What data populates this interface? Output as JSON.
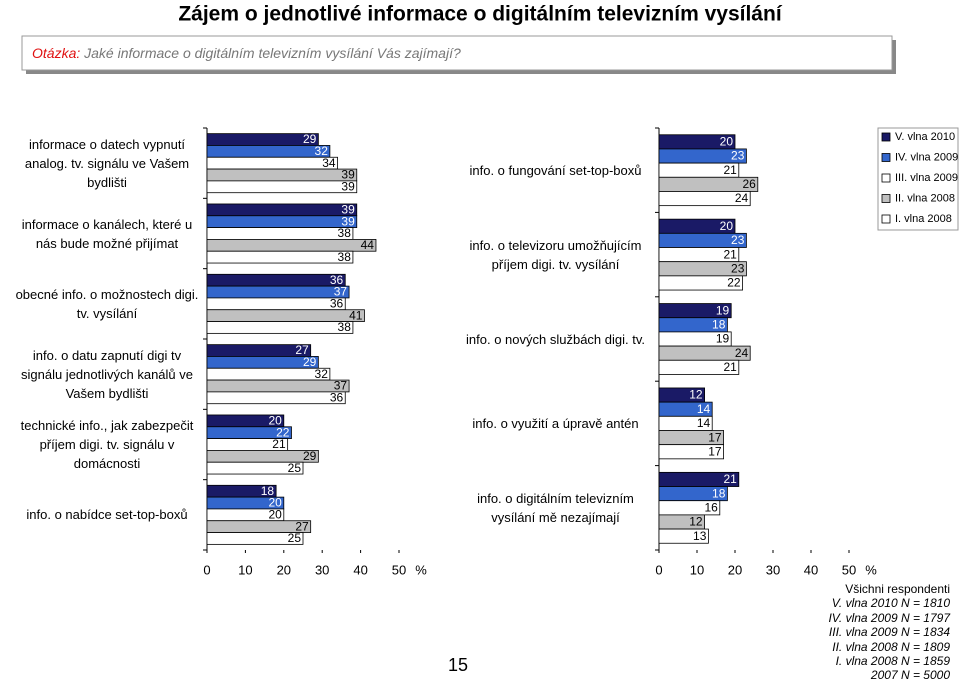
{
  "title": "Zájem o jednotlivé informace o digitálním televizním vysílání",
  "question": {
    "label": "Otázka:",
    "text": "Jaké informace o digitálním televizním vysílání Vás zajímají?"
  },
  "chart_data": [
    {
      "type": "bar",
      "orientation": "horizontal",
      "categories": [
        "informace o datech vypnutí analog. tv. signálu ve Vašem bydlišti",
        "informace o kanálech, které u nás bude možné přijímat",
        "obecné info. o možnostech digi. tv. vysílání",
        "info. o datu zapnutí digi tv signálu jednotlivých kanálů ve Vašem bydlišti",
        "technické info., jak zabezpečit příjem digi. tv. signálu v domácnosti",
        "info. o nabídce set-top-boxů"
      ],
      "series": [
        {
          "color": "#1a1a66",
          "values": [
            29,
            39,
            36,
            27,
            20,
            18
          ]
        },
        {
          "color": "#3366cc",
          "values": [
            32,
            39,
            37,
            29,
            22,
            20
          ]
        },
        {
          "color": "#ffffff",
          "values": [
            34,
            38,
            36,
            32,
            21,
            20
          ]
        },
        {
          "color": "#c0c0c0",
          "values": [
            39,
            44,
            41,
            37,
            29,
            27
          ]
        },
        {
          "color": "#ffffff",
          "values": [
            39,
            38,
            38,
            36,
            25,
            25
          ]
        }
      ],
      "xlim": [
        0,
        50
      ],
      "xticks": [
        0,
        10,
        20,
        30,
        40,
        50
      ],
      "x_unit": "%"
    },
    {
      "type": "bar",
      "orientation": "horizontal",
      "categories": [
        "info. o fungování set-top-boxů",
        "info. o televizoru umožňujícím příjem digi. tv. vysílání",
        "info. o nových službách digi. tv.",
        "info. o využití a úpravě antén",
        "info. o digitálním televizním vysílání mě nezajímají"
      ],
      "series": [
        {
          "name": "V. vlna 2010",
          "color": "#1a1a66",
          "values": [
            20,
            20,
            19,
            12,
            21
          ]
        },
        {
          "name": "IV. vlna 2009",
          "color": "#3366cc",
          "values": [
            23,
            23,
            18,
            14,
            18
          ]
        },
        {
          "name": "III. vlna 2009",
          "color": "#ffffff",
          "values": [
            21,
            21,
            19,
            14,
            16
          ]
        },
        {
          "name": "II. vlna 2008",
          "color": "#c0c0c0",
          "values": [
            26,
            23,
            24,
            17,
            12
          ]
        },
        {
          "name": "I. vlna 2008",
          "color": "#ffffff",
          "values": [
            24,
            22,
            21,
            17,
            13
          ]
        }
      ],
      "xlim": [
        0,
        50
      ],
      "xticks": [
        0,
        10,
        20,
        30,
        40,
        50
      ],
      "x_unit": "%",
      "legend": "top-right"
    }
  ],
  "notes": [
    "Všichni respondenti",
    "V. vlna 2010 N = 1810",
    "IV. vlna 2009 N = 1797",
    "III. vlna 2009 N = 1834",
    "II. vlna 2008 N = 1809",
    "I. vlna 2008 N = 1859",
    "2007 N = 5000"
  ],
  "page_number": "15"
}
